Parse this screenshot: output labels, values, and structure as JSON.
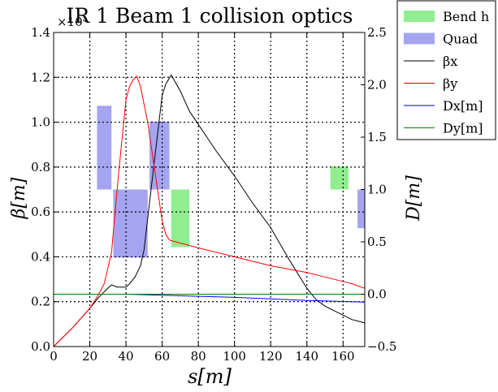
{
  "chart_data": {
    "type": "line",
    "title": "IR 1 Beam 1 collision optics",
    "xlabel": "s[m]",
    "ylabel_left": "β[m]",
    "ylabel_right": "D[m]",
    "xlim": [
      0,
      172
    ],
    "ylim_left": [
      0,
      1.4
    ],
    "ylim_right": [
      -0.5,
      2.5
    ],
    "left_scale_label": "×10⁴",
    "x_ticks": [
      "0",
      "20",
      "40",
      "60",
      "80",
      "100",
      "120",
      "140",
      "160"
    ],
    "y_left_ticks": [
      "0.0",
      "0.2",
      "0.4",
      "0.6",
      "0.8",
      "1.0",
      "1.2",
      "1.4"
    ],
    "y_right_ticks": [
      "−0.5",
      "0.0",
      "0.5",
      "1.0",
      "1.5",
      "2.0",
      "2.5"
    ],
    "grid": true,
    "legend_position": "upper-right-outside",
    "legend": [
      {
        "label": "Bend h",
        "kind": "patch",
        "color": "#90ee90"
      },
      {
        "label": "Quad",
        "kind": "patch",
        "color": "#a4a4f0"
      },
      {
        "label": "βx",
        "kind": "line",
        "color": "#000000"
      },
      {
        "label": "βy",
        "kind": "line",
        "color": "#ff0000"
      },
      {
        "label": "Dx[m]",
        "kind": "line",
        "color": "#0000ff"
      },
      {
        "label": "Dy[m]",
        "kind": "line",
        "color": "#008000"
      }
    ],
    "series": [
      {
        "name": "βx",
        "axis": "left",
        "color": "#000000",
        "x": [
          0,
          10,
          20,
          25,
          30,
          32,
          35,
          40,
          42,
          45,
          48,
          50,
          55,
          60,
          62,
          65,
          70,
          75,
          80,
          90,
          100,
          110,
          120,
          130,
          140,
          145,
          150,
          155,
          160,
          165,
          170,
          172
        ],
        "y": [
          0,
          0.08,
          0.17,
          0.22,
          0.26,
          0.275,
          0.265,
          0.265,
          0.28,
          0.31,
          0.36,
          0.43,
          0.78,
          1.12,
          1.17,
          1.21,
          1.14,
          1.05,
          0.99,
          0.87,
          0.76,
          0.64,
          0.53,
          0.39,
          0.26,
          0.21,
          0.18,
          0.16,
          0.14,
          0.12,
          0.11,
          0.105
        ]
      },
      {
        "name": "βy",
        "axis": "left",
        "color": "#ff0000",
        "x": [
          0,
          10,
          20,
          24,
          28,
          32,
          36,
          40,
          42,
          44,
          46,
          48,
          52,
          56,
          60,
          62,
          64,
          66,
          80,
          100,
          120,
          140,
          150,
          160,
          165,
          170,
          172
        ],
        "y": [
          0,
          0.08,
          0.17,
          0.22,
          0.28,
          0.42,
          0.78,
          1.1,
          1.16,
          1.19,
          1.205,
          1.16,
          1.0,
          0.78,
          0.56,
          0.5,
          0.475,
          0.47,
          0.44,
          0.4,
          0.36,
          0.33,
          0.31,
          0.29,
          0.28,
          0.265,
          0.26
        ]
      },
      {
        "name": "Dx[m]",
        "axis": "right",
        "color": "#0000ff",
        "x": [
          0,
          20,
          40,
          60,
          80,
          100,
          120,
          140,
          160,
          172
        ],
        "y": [
          0.0,
          0.0,
          0.0,
          -0.01,
          -0.02,
          -0.03,
          -0.045,
          -0.06,
          -0.07,
          -0.075
        ]
      },
      {
        "name": "Dy[m]",
        "axis": "right",
        "color": "#008000",
        "x": [
          0,
          172
        ],
        "y": [
          0.0,
          0.0
        ]
      }
    ],
    "magnets": {
      "axis": "right",
      "bends": [
        {
          "s_start": 65,
          "s_end": 75,
          "D_low": 0.45,
          "D_high": 1.0
        },
        {
          "s_start": 153,
          "s_end": 163,
          "D_low": 1.0,
          "D_high": 1.22
        }
      ],
      "quads": [
        {
          "s_start": 24,
          "s_end": 32,
          "D_low": 1.0,
          "D_high": 1.8
        },
        {
          "s_start": 33,
          "s_end": 40,
          "D_low": 0.35,
          "D_high": 1.0
        },
        {
          "s_start": 40,
          "s_end": 52,
          "D_low": 0.35,
          "D_high": 1.0
        },
        {
          "s_start": 53,
          "s_end": 64,
          "D_low": 1.0,
          "D_high": 1.65
        },
        {
          "s_start": 168,
          "s_end": 172,
          "D_low": 0.63,
          "D_high": 1.0
        }
      ]
    }
  }
}
